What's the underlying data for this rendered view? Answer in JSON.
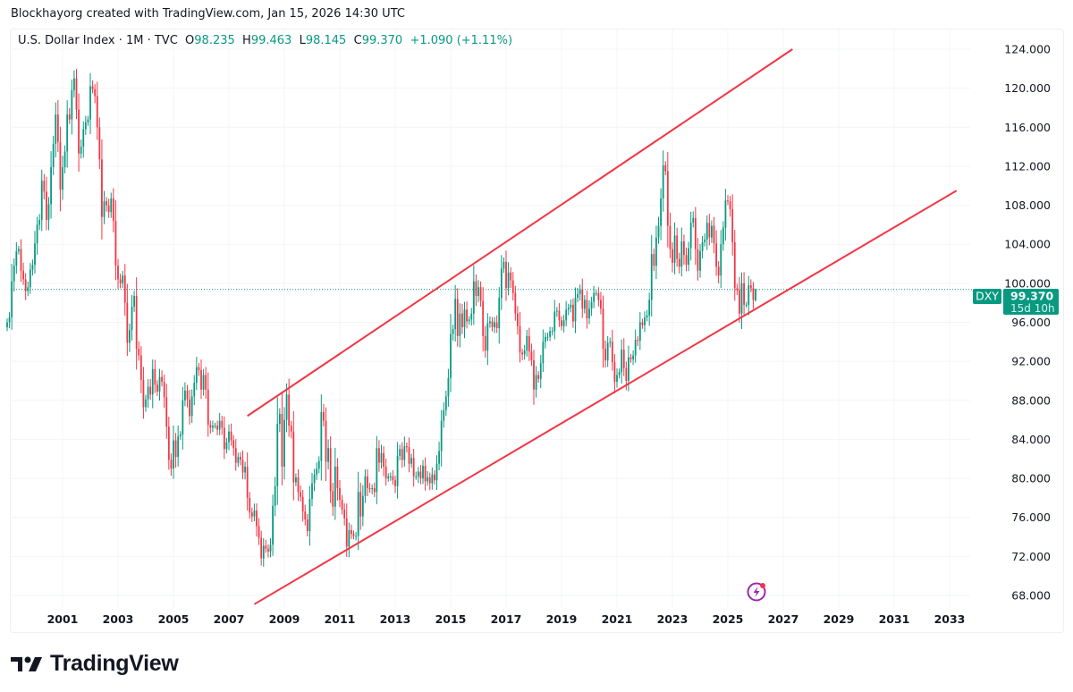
{
  "credit": "Blockhayorg created with TradingView.com, Jan 15, 2026 14:30 UTC",
  "legend": {
    "symbol": "U.S. Dollar Index · 1M · TVC",
    "open_label": "O",
    "open": "98.235",
    "high_label": "H",
    "high": "99.463",
    "low_label": "L",
    "low": "98.145",
    "close_label": "C",
    "close": "99.370",
    "change": "+1.090 (+1.11%)"
  },
  "price_tag": {
    "ticker": "DXY",
    "price": "99.370",
    "countdown": "15d 10h"
  },
  "logo": {
    "text": "TradingView"
  },
  "icons": {
    "alert": "lightning-bolt-icon",
    "logo": "tradingview-logo-icon"
  },
  "colors": {
    "up": "#089981",
    "down": "#f23645",
    "channel": "#f23645",
    "alert": "#9c27b0"
  },
  "chart_data": {
    "type": "candlestick",
    "interval": "1M",
    "start": "1999-01",
    "closes": [
      96.0,
      96.5,
      100.2,
      101.8,
      103.3,
      103.5,
      101.3,
      100.4,
      99.2,
      99.6,
      101.4,
      101.9,
      104.1,
      106.0,
      106.5,
      110.5,
      109.4,
      106.5,
      108.1,
      111.9,
      114.3,
      117.3,
      114.5,
      109.6,
      111.9,
      113.5,
      117.3,
      116.8,
      119.8,
      121.0,
      117.8,
      113.3,
      114.0,
      115.8,
      116.5,
      116.8,
      120.2,
      119.9,
      119.2,
      116.0,
      112.7,
      106.8,
      108.4,
      108.0,
      107.3,
      108.7,
      106.4,
      101.8,
      100.4,
      100.0,
      100.8,
      98.0,
      93.9,
      95.2,
      97.6,
      98.7,
      93.3,
      92.6,
      90.1,
      87.3,
      88.1,
      89.4,
      88.6,
      91.2,
      89.6,
      88.9,
      90.4,
      89.9,
      88.3,
      85.3,
      81.9,
      81.0,
      83.9,
      82.2,
      84.3,
      84.5,
      88.0,
      89.0,
      88.1,
      86.4,
      88.4,
      89.8,
      91.4,
      91.1,
      89.1,
      90.6,
      89.1,
      85.5,
      85.2,
      85.4,
      85.4,
      85.0,
      85.9,
      85.2,
      83.0,
      83.7,
      84.8,
      83.9,
      83.1,
      81.6,
      82.2,
      81.9,
      80.6,
      81.2,
      78.0,
      76.5,
      76.1,
      76.7,
      75.1,
      73.9,
      71.8,
      73.1,
      72.8,
      72.5,
      73.2,
      77.2,
      79.2,
      85.6,
      86.6,
      81.2,
      86.0,
      88.6,
      85.4,
      84.8,
      79.6,
      80.1,
      78.6,
      78.1,
      76.6,
      75.8,
      74.6,
      77.9,
      79.5,
      80.4,
      81.0,
      81.8,
      86.8,
      85.9,
      81.7,
      83.1,
      78.7,
      77.1,
      81.2,
      79.0,
      77.8,
      76.8,
      75.9,
      73.0,
      74.7,
      74.3,
      74.1,
      74.1,
      78.6,
      76.1,
      78.2,
      80.2,
      79.0,
      78.9,
      79.0,
      78.6,
      83.1,
      81.6,
      82.6,
      81.2,
      80.0,
      80.2,
      80.2,
      79.8,
      79.2,
      82.3,
      83.0,
      81.9,
      83.3,
      83.2,
      81.5,
      82.1,
      80.2,
      80.2,
      80.7,
      80.0,
      81.3,
      79.7,
      80.1,
      79.5,
      80.4,
      79.8,
      81.5,
      82.8,
      85.9,
      87.0,
      88.4,
      90.3,
      94.8,
      95.3,
      98.4,
      94.6,
      96.9,
      95.5,
      97.3,
      96.1,
      96.3,
      96.9,
      100.2,
      98.7,
      99.6,
      98.2,
      94.6,
      93.1,
      95.9,
      96.1,
      95.5,
      96.0,
      95.4,
      98.5,
      101.5,
      102.2,
      99.5,
      101.1,
      100.3,
      99.0,
      96.9,
      95.6,
      92.9,
      92.7,
      93.1,
      94.6,
      93.0,
      92.1,
      89.1,
      90.6,
      90.2,
      91.8,
      94.0,
      94.5,
      94.5,
      95.1,
      95.1,
      97.1,
      97.2,
      96.2,
      95.6,
      96.2,
      97.3,
      97.5,
      97.8,
      96.1,
      98.5,
      98.9,
      99.4,
      97.4,
      98.3,
      96.4,
      97.4,
      98.1,
      99.0,
      99.0,
      98.3,
      97.4,
      93.3,
      92.1,
      93.9,
      94.0,
      91.9,
      89.9,
      90.6,
      90.9,
      93.2,
      91.3,
      90.0,
      92.4,
      92.2,
      92.6,
      94.2,
      94.1,
      96.0,
      95.7,
      96.5,
      96.7,
      98.3,
      103.0,
      101.8,
      104.7,
      105.9,
      108.7,
      112.1,
      111.5,
      105.9,
      103.5,
      102.1,
      104.9,
      102.5,
      101.7,
      104.3,
      102.9,
      101.9,
      103.6,
      106.2,
      106.7,
      103.5,
      101.3,
      103.3,
      104.2,
      104.5,
      106.2,
      104.7,
      105.9,
      104.1,
      101.7,
      100.8,
      104.0,
      105.7,
      108.5,
      108.4,
      107.6,
      104.2,
      99.5,
      99.3,
      96.9,
      100.0,
      97.8,
      97.8,
      99.8,
      99.5,
      98.3,
      99.37
    ],
    "last_candle": {
      "open": 98.235,
      "high": 99.463,
      "low": 98.145,
      "close": 99.37
    },
    "current_price": 99.37,
    "y_ticks": [
      "68.000",
      "72.000",
      "76.000",
      "80.000",
      "84.000",
      "88.000",
      "92.000",
      "96.000",
      "100.000",
      "104.000",
      "108.000",
      "112.000",
      "116.000",
      "120.000",
      "124.000"
    ],
    "x_ticks": [
      "2001",
      "2003",
      "2005",
      "2007",
      "2009",
      "2011",
      "2013",
      "2015",
      "2017",
      "2019",
      "2021",
      "2023",
      "2025",
      "2027",
      "2029",
      "2031",
      "2033"
    ],
    "ylim": [
      66,
      126
    ],
    "xlim": [
      "1999-01",
      "2034-06"
    ],
    "grid": true,
    "trendlines": [
      {
        "name": "upper-channel",
        "points": [
          [
            "2007-09",
            86.4
          ],
          [
            "2027-05",
            124.0
          ]
        ]
      },
      {
        "name": "lower-channel",
        "points": [
          [
            "2007-12",
            67.1
          ],
          [
            "2033-04",
            109.5
          ]
        ]
      }
    ]
  }
}
